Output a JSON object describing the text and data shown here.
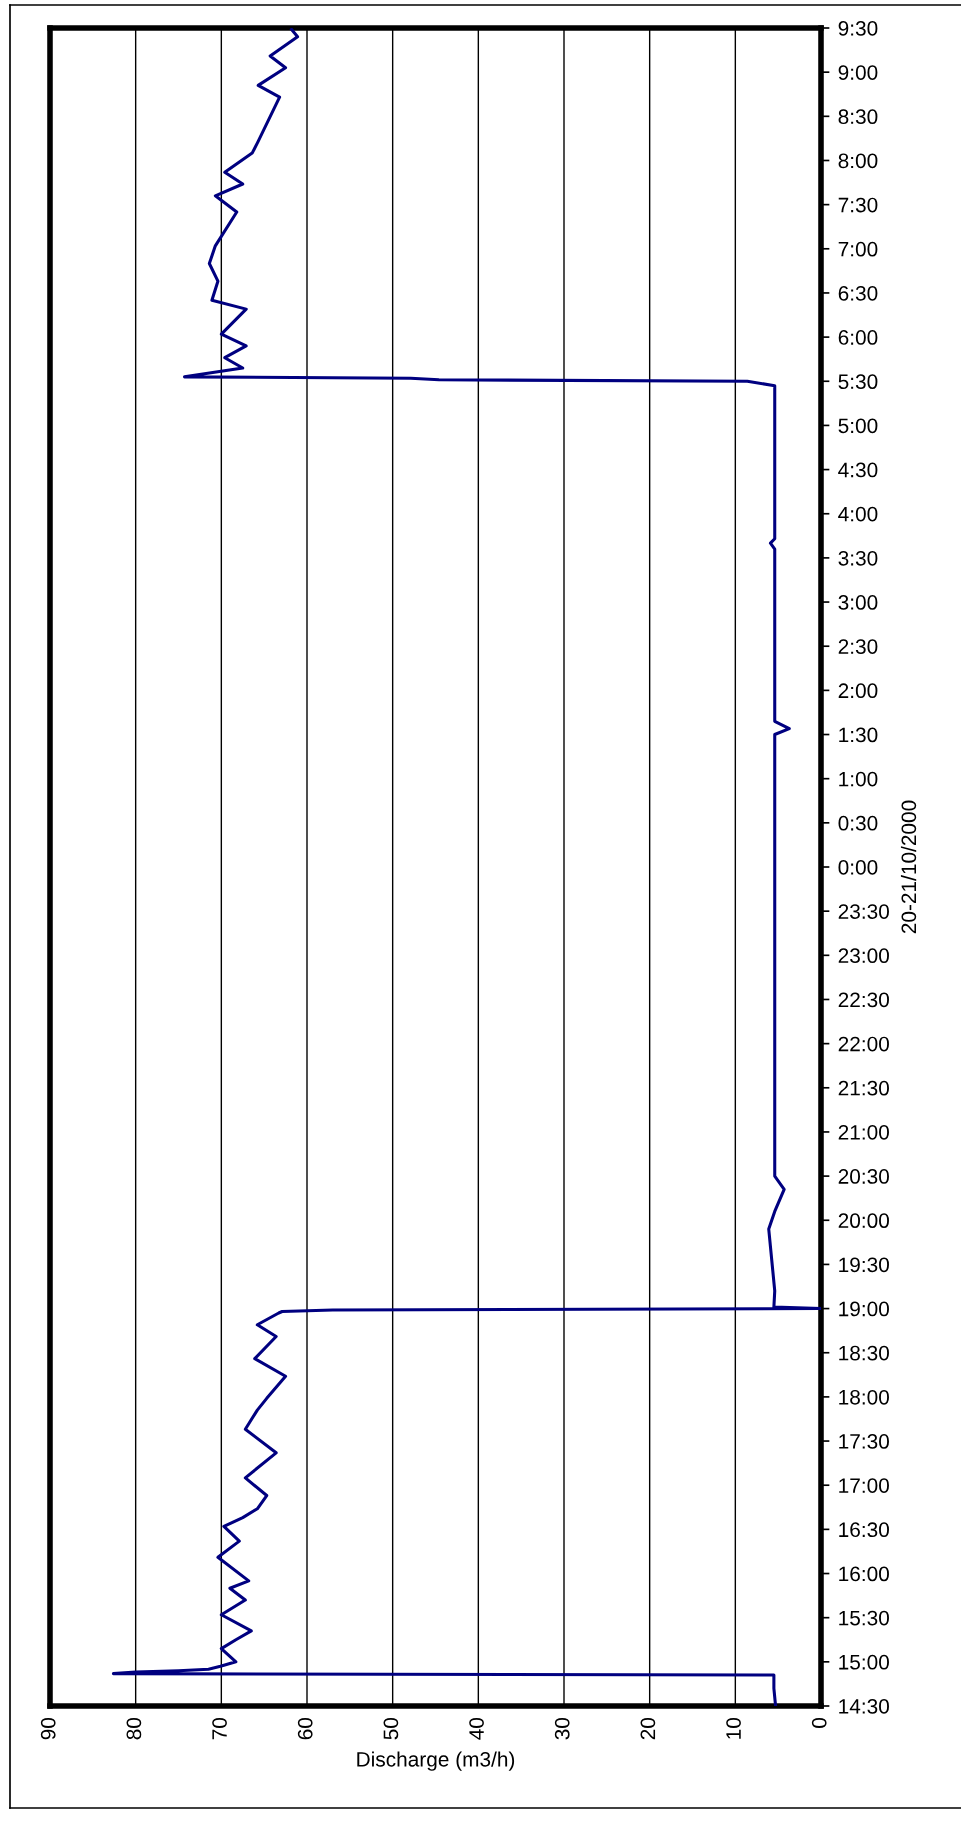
{
  "chart_data": {
    "type": "line",
    "ylabel": "20-21/10/2000",
    "xlabel": "Discharge (m3/h)",
    "orientation": "horizontal",
    "ylim": [
      "2000-10-20T14:30",
      "2000-10-21T09:30"
    ],
    "yticks": [
      {
        "value": "2000-10-20T14:30",
        "label": "14:30"
      },
      {
        "value": "2000-10-20T15:00",
        "label": "15:00"
      },
      {
        "value": "2000-10-20T15:30",
        "label": "15:30"
      },
      {
        "value": "2000-10-20T16:00",
        "label": "16:00"
      },
      {
        "value": "2000-10-20T16:30",
        "label": "16:30"
      },
      {
        "value": "2000-10-20T17:00",
        "label": "17:00"
      },
      {
        "value": "2000-10-20T17:30",
        "label": "17:30"
      },
      {
        "value": "2000-10-20T18:00",
        "label": "18:00"
      },
      {
        "value": "2000-10-20T18:30",
        "label": "18:30"
      },
      {
        "value": "2000-10-20T19:00",
        "label": "19:00"
      },
      {
        "value": "2000-10-20T19:30",
        "label": "19:30"
      },
      {
        "value": "2000-10-20T20:00",
        "label": "20:00"
      },
      {
        "value": "2000-10-20T20:30",
        "label": "20:30"
      },
      {
        "value": "2000-10-20T21:00",
        "label": "21:00"
      },
      {
        "value": "2000-10-20T21:30",
        "label": "21:30"
      },
      {
        "value": "2000-10-20T22:00",
        "label": "22:00"
      },
      {
        "value": "2000-10-20T22:30",
        "label": "22:30"
      },
      {
        "value": "2000-10-20T23:00",
        "label": "23:00"
      },
      {
        "value": "2000-10-20T23:30",
        "label": "23:30"
      },
      {
        "value": "2000-10-21T00:00",
        "label": "0:00"
      },
      {
        "value": "2000-10-21T00:30",
        "label": "0:30"
      },
      {
        "value": "2000-10-21T01:00",
        "label": "1:00"
      },
      {
        "value": "2000-10-21T01:30",
        "label": "1:30"
      },
      {
        "value": "2000-10-21T02:00",
        "label": "2:00"
      },
      {
        "value": "2000-10-21T02:30",
        "label": "2:30"
      },
      {
        "value": "2000-10-21T03:00",
        "label": "3:00"
      },
      {
        "value": "2000-10-21T03:30",
        "label": "3:30"
      },
      {
        "value": "2000-10-21T04:00",
        "label": "4:00"
      },
      {
        "value": "2000-10-21T04:30",
        "label": "4:30"
      },
      {
        "value": "2000-10-21T05:00",
        "label": "5:00"
      },
      {
        "value": "2000-10-21T05:30",
        "label": "5:30"
      },
      {
        "value": "2000-10-21T06:00",
        "label": "6:00"
      },
      {
        "value": "2000-10-21T06:30",
        "label": "6:30"
      },
      {
        "value": "2000-10-21T07:00",
        "label": "7:00"
      },
      {
        "value": "2000-10-21T07:30",
        "label": "7:30"
      },
      {
        "value": "2000-10-21T08:00",
        "label": "8:00"
      },
      {
        "value": "2000-10-21T08:30",
        "label": "8:30"
      },
      {
        "value": "2000-10-21T09:00",
        "label": "9:00"
      },
      {
        "value": "2000-10-21T09:30",
        "label": "9:30"
      }
    ],
    "xlim": [
      90,
      0
    ],
    "xticks": [
      0,
      10,
      20,
      30,
      40,
      50,
      60,
      70,
      80,
      90
    ],
    "grid": "x",
    "legend": false,
    "marker": "none",
    "line_style": "solid",
    "series": [
      {
        "color": "#000080",
        "x": [
          "2000-10-20T14:30",
          "2000-10-20T14:42",
          "2000-10-20T14:51",
          "2000-10-20T14:52",
          "2000-10-20T14:53",
          "2000-10-20T14:54",
          "2000-10-20T14:55",
          "2000-10-20T14:57",
          "2000-10-20T15:00",
          "2000-10-20T15:09",
          "2000-10-20T15:15",
          "2000-10-20T15:21",
          "2000-10-20T15:32",
          "2000-10-20T15:42",
          "2000-10-20T15:50",
          "2000-10-20T15:55",
          "2000-10-20T16:11",
          "2000-10-20T16:22",
          "2000-10-20T16:32",
          "2000-10-20T16:38",
          "2000-10-20T16:44",
          "2000-10-20T16:53",
          "2000-10-20T17:05",
          "2000-10-20T17:22",
          "2000-10-20T17:38",
          "2000-10-20T17:51",
          "2000-10-20T17:59",
          "2000-10-20T18:14",
          "2000-10-20T18:26",
          "2000-10-20T18:41",
          "2000-10-20T18:49",
          "2000-10-20T18:57",
          "2000-10-20T18:58",
          "2000-10-20T18:59",
          "2000-10-20T19:00",
          "2000-10-20T19:01",
          "2000-10-20T19:12",
          "2000-10-20T19:54",
          "2000-10-20T20:06",
          "2000-10-20T20:21",
          "2000-10-20T20:30",
          "2000-10-20T21:30",
          "2000-10-20T22:30",
          "2000-10-20T23:30",
          "2000-10-21T00:30",
          "2000-10-21T01:30",
          "2000-10-21T01:34",
          "2000-10-21T01:39",
          "2000-10-21T02:30",
          "2000-10-21T03:36",
          "2000-10-21T03:40",
          "2000-10-21T03:43",
          "2000-10-21T04:30",
          "2000-10-21T05:27",
          "2000-10-21T05:30",
          "2000-10-21T05:31",
          "2000-10-21T05:32",
          "2000-10-21T05:33",
          "2000-10-21T05:39",
          "2000-10-21T05:46",
          "2000-10-21T05:54",
          "2000-10-21T06:02",
          "2000-10-21T06:19",
          "2000-10-21T06:25",
          "2000-10-21T06:38",
          "2000-10-21T06:50",
          "2000-10-21T07:02",
          "2000-10-21T07:25",
          "2000-10-21T07:36",
          "2000-10-21T07:44",
          "2000-10-21T07:52",
          "2000-10-21T08:05",
          "2000-10-21T08:13",
          "2000-10-21T08:43",
          "2000-10-21T08:51",
          "2000-10-21T09:03",
          "2000-10-21T09:11",
          "2000-10-21T09:24",
          "2000-10-21T09:29"
        ],
        "values": [
          5.3,
          5.5,
          5.5,
          82.6,
          80,
          75,
          71.5,
          70.1,
          68.3,
          70,
          68.3,
          66.5,
          70,
          67.2,
          69,
          66.8,
          70.4,
          67.9,
          69.7,
          67.5,
          65.8,
          64.7,
          67.2,
          63.6,
          67.2,
          65.8,
          64.7,
          62.5,
          66.1,
          63.6,
          65.8,
          63.3,
          62.9,
          57,
          0,
          5.5,
          5.4,
          6.1,
          5.4,
          4.3,
          5.4,
          5.4,
          5.4,
          5.4,
          5.4,
          5.4,
          3.7,
          5.4,
          5.4,
          5.4,
          5.9,
          5.4,
          5.4,
          5.4,
          8.6,
          44.6,
          47.9,
          74.3,
          67.5,
          69.6,
          67.1,
          70,
          67.1,
          71.1,
          70.4,
          71.4,
          70.7,
          68.2,
          70.7,
          67.5,
          69.6,
          66.4,
          65.7,
          63.2,
          65.7,
          62.5,
          64.3,
          61.1,
          61.8
        ]
      }
    ]
  }
}
